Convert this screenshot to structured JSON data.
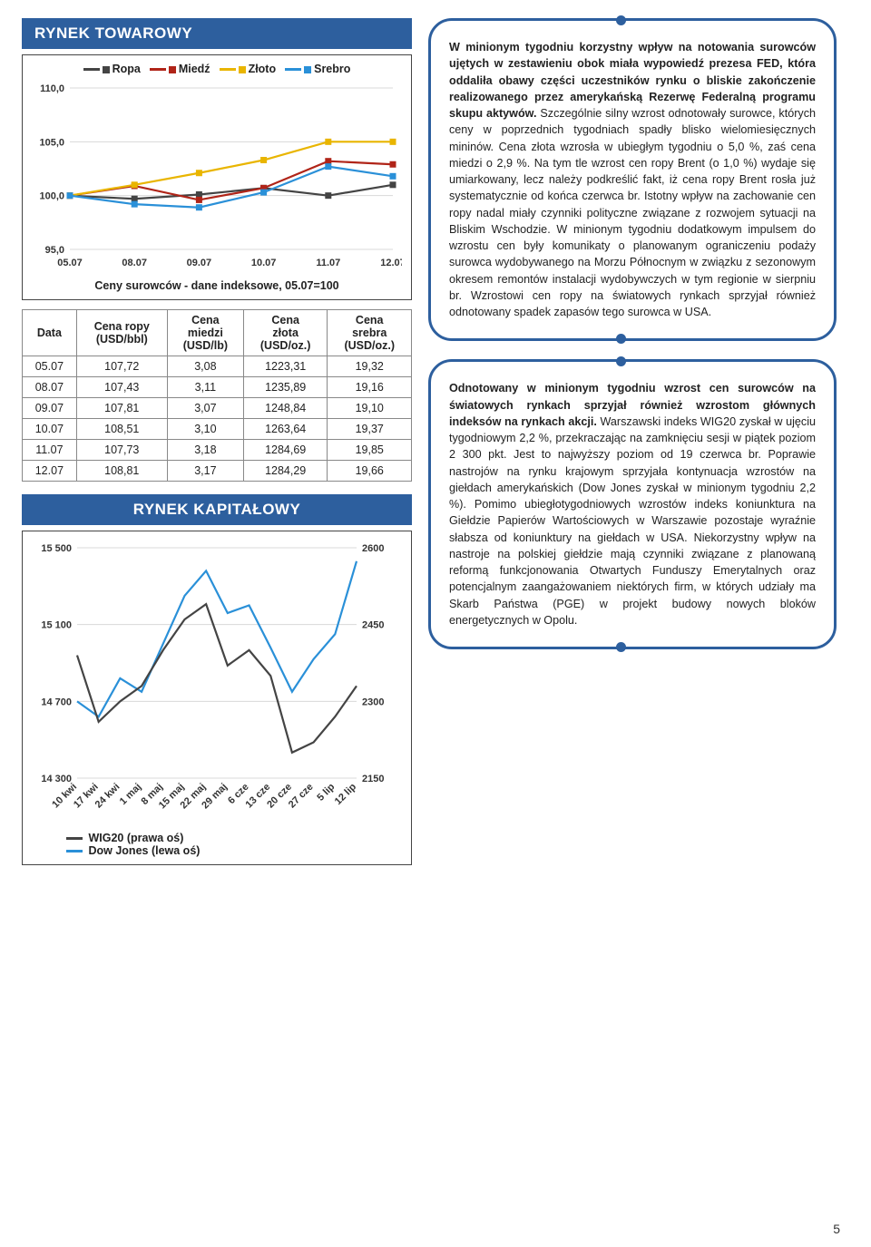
{
  "towarowy": {
    "header": "RYNEK TOWAROWY",
    "chart": {
      "type": "line",
      "x_labels": [
        "05.07",
        "08.07",
        "09.07",
        "10.07",
        "11.07",
        "12.07"
      ],
      "ylim": [
        95,
        110
      ],
      "ytick_step": 5,
      "series": [
        {
          "name": "Ropa",
          "color": "#444444",
          "values": [
            100.0,
            99.7,
            100.1,
            100.7,
            100.0,
            101.0
          ]
        },
        {
          "name": "Miedź",
          "color": "#b02418",
          "values": [
            100.0,
            100.9,
            99.6,
            100.7,
            103.2,
            102.9
          ]
        },
        {
          "name": "Złoto",
          "color": "#e9b500",
          "values": [
            100.0,
            101.0,
            102.1,
            103.3,
            105.0,
            105.0
          ]
        },
        {
          "name": "Srebro",
          "color": "#2a90d8",
          "values": [
            100.0,
            99.2,
            98.9,
            100.3,
            102.7,
            101.8
          ]
        }
      ],
      "caption": "Ceny surowców - dane indeksowe, 05.07=100",
      "label_fontsize": 12,
      "line_width": 2.2,
      "marker": "square",
      "grid_color": "#d8d8d8",
      "background": "#ffffff"
    },
    "table": {
      "columns": [
        "Data",
        "Cena ropy\n(USD/bbl)",
        "Cena\nmiedzi\n(USD/lb)",
        "Cena\nzłota\n(USD/oz.)",
        "Cena\nsrebra\n(USD/oz.)"
      ],
      "rows": [
        [
          "05.07",
          "107,72",
          "3,08",
          "1223,31",
          "19,32"
        ],
        [
          "08.07",
          "107,43",
          "3,11",
          "1235,89",
          "19,16"
        ],
        [
          "09.07",
          "107,81",
          "3,07",
          "1248,84",
          "19,10"
        ],
        [
          "10.07",
          "108,51",
          "3,10",
          "1263,64",
          "19,37"
        ],
        [
          "11.07",
          "107,73",
          "3,18",
          "1284,69",
          "19,85"
        ],
        [
          "12.07",
          "108,81",
          "3,17",
          "1284,29",
          "19,66"
        ]
      ]
    },
    "text": "W minionym tygodniu korzystny wpływ na notowania surowców ujętych w zestawieniu obok miała wypowiedź prezesa FED, która oddaliła obawy części uczestników rynku o bliskie zakończenie realizowanego przez amerykańską Rezerwę Federalną programu skupu aktywów. Szczególnie silny wzrost odnotowały surowce, których ceny w poprzednich tygodniach spadły blisko wielomiesięcznych mininów. Cena złota wzrosła w ubiegłym tygodniu o 5,0 %, zaś cena miedzi o 2,9 %. Na tym tle wzrost cen ropy Brent (o 1,0 %) wydaje się umiarkowany, lecz należy podkreślić fakt, iż cena ropy Brent rosła już systematycznie od końca czerwca br. Istotny wpływ na zachowanie cen ropy nadal miały czynniki polityczne związane z rozwojem sytuacji na Bliskim Wschodzie. W minionym tygodniu dodatkowym impulsem do wzrostu cen były komunikaty o planowanym ograniczeniu podaży surowca wydobywanego na Morzu Północnym w związku z sezonowym okresem remontów instalacji wydobywczych w tym regionie w sierpniu br. Wzrostowi cen ropy na światowych rynkach sprzyjał również odnotowany spadek zapasów tego surowca w USA."
  },
  "kapitalowy": {
    "header": "RYNEK KAPITAŁOWY",
    "chart": {
      "type": "dual-axis-line",
      "x_labels": [
        "10 kwi",
        "17 kwi",
        "24 kwi",
        "1 maj",
        "8 maj",
        "15 maj",
        "22 maj",
        "29 maj",
        "6 cze",
        "13 cze",
        "20 cze",
        "27 cze",
        "5 lip",
        "12 lip"
      ],
      "left": {
        "label": "Dow Jones (lewa oś)",
        "color": "#2a90d8",
        "ylim": [
          14300,
          15500
        ],
        "ytick_step": 400,
        "values": [
          14700,
          14620,
          14820,
          14750,
          15000,
          15250,
          15380,
          15160,
          15200,
          14980,
          14750,
          14920,
          15050,
          15430
        ]
      },
      "right": {
        "label": "WIG20 (prawa oś)",
        "color": "#444444",
        "ylim": [
          2150,
          2600
        ],
        "ytick_step": 150,
        "values": [
          2390,
          2260,
          2300,
          2330,
          2400,
          2460,
          2490,
          2370,
          2400,
          2350,
          2200,
          2220,
          2270,
          2330
        ]
      },
      "line_width": 2.2,
      "grid_color": "#d8d8d8",
      "background": "#ffffff",
      "label_fontsize": 12
    },
    "text": "Odnotowany w minionym tygodniu wzrost cen surowców na światowych rynkach sprzyjał również wzrostom głównych indeksów na rynkach akcji. Warszawski indeks WIG20 zyskał w ujęciu tygodniowym 2,2 %, przekraczając na zamknięciu sesji w piątek poziom 2 300 pkt. Jest to najwyższy poziom od 19 czerwca br. Poprawie nastrojów na rynku krajowym sprzyjała kontynuacja wzrostów na giełdach amerykańskich (Dow Jones zyskał w minionym tygodniu 2,2 %). Pomimo ubiegłotygodniowych wzrostów indeks koniunktura na Giełdzie Papierów Wartościowych w Warszawie pozostaje wyraźnie słabsza od koniunktury na giełdach w USA. Niekorzystny wpływ na nastroje na polskiej giełdzie mają czynniki związane z planowaną reformą funkcjonowania Otwartych Funduszy Emerytalnych oraz potencjalnym zaangażowaniem niektórych firm, w których udziały ma Skarb Państwa (PGE) w projekt budowy nowych bloków energetycznych w Opolu."
  },
  "page_number": "5"
}
